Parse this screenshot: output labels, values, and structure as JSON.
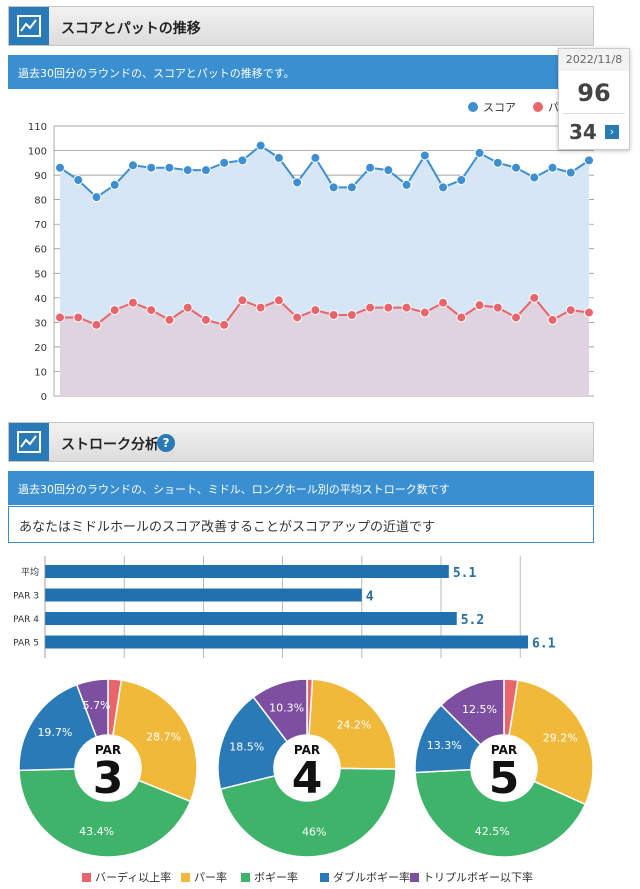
{
  "section1": {
    "title": "スコアとパットの推移",
    "info": "過去30回分のラウンドの、スコアとパットの推移です。",
    "tooltip": {
      "date": "2022/11/8",
      "score": "96",
      "putt": "34",
      "arrow": "›"
    }
  },
  "section2": {
    "title": "ストローク分析",
    "help": "?",
    "info": "過去30回分のラウンドの、ショート、ミドル、ロングホール別の平均ストローク数です",
    "note": "あなたはミドルホールのスコア改善することがスコアアップの近道です"
  },
  "colors": {
    "score": "#3d8fd1",
    "putt": "#e8666b",
    "score_fill": "#d6e6f4",
    "putt_fill": "#e0cfdb",
    "bar": "#2170b0",
    "birdie": "#e8666b",
    "par": "#f0b93a",
    "bogey": "#3fb36a",
    "double": "#2a7ab8",
    "triple": "#7c4fa0"
  },
  "chart_data": [
    {
      "type": "line",
      "ylim": [
        0,
        110
      ],
      "yticks": [
        "0",
        "10",
        "20",
        "30",
        "40",
        "50",
        "60",
        "70",
        "80",
        "90",
        "100",
        "110"
      ],
      "series": [
        {
          "name": "スコア",
          "values": [
            93,
            88,
            81,
            86,
            94,
            93,
            93,
            92,
            92,
            95,
            96,
            102,
            97,
            87,
            97,
            85,
            85,
            93,
            92,
            86,
            98,
            85,
            88,
            99,
            95,
            93,
            89,
            93,
            91,
            96
          ]
        },
        {
          "name": "パット",
          "values": [
            32,
            32,
            29,
            35,
            38,
            35,
            31,
            36,
            31,
            29,
            39,
            36,
            39,
            32,
            35,
            33,
            33,
            36,
            36,
            36,
            34,
            38,
            32,
            37,
            36,
            32,
            40,
            31,
            35,
            34
          ]
        }
      ],
      "legend": [
        "スコア",
        "パット"
      ]
    },
    {
      "type": "bar",
      "orientation": "horizontal",
      "categories": [
        "平均",
        "PAR 3",
        "PAR 4",
        "PAR 5"
      ],
      "values": [
        5.1,
        4,
        5.2,
        6.1
      ],
      "labels": [
        "5.1",
        "4",
        "5.2",
        "6.1"
      ],
      "xlim": [
        0,
        6.1
      ]
    },
    {
      "type": "pie",
      "center_label": "PAR",
      "center_number": "3",
      "slices": [
        {
          "name": "バーディ以上率",
          "value": 2.4,
          "label": ""
        },
        {
          "name": "パー率",
          "value": 28.7,
          "label": "28.7%"
        },
        {
          "name": "ボギー率",
          "value": 43.4,
          "label": "43.4%"
        },
        {
          "name": "ダブルボギー率",
          "value": 19.7,
          "label": "19.7%"
        },
        {
          "name": "トリプルボギー以下率",
          "value": 5.7,
          "label": "5.7%"
        }
      ]
    },
    {
      "type": "pie",
      "center_label": "PAR",
      "center_number": "4",
      "slices": [
        {
          "name": "バーディ以上率",
          "value": 1.0,
          "label": ""
        },
        {
          "name": "パー率",
          "value": 24.2,
          "label": "24.2%"
        },
        {
          "name": "ボギー率",
          "value": 46.0,
          "label": "46%"
        },
        {
          "name": "ダブルボギー率",
          "value": 18.5,
          "label": "18.5%"
        },
        {
          "name": "トリプルボギー以下率",
          "value": 10.3,
          "label": "10.3%"
        }
      ]
    },
    {
      "type": "pie",
      "center_label": "PAR",
      "center_number": "5",
      "slices": [
        {
          "name": "バーディ以上率",
          "value": 2.5,
          "label": ""
        },
        {
          "name": "パー率",
          "value": 29.2,
          "label": "29.2%"
        },
        {
          "name": "ボギー率",
          "value": 42.5,
          "label": "42.5%"
        },
        {
          "name": "ダブルボギー率",
          "value": 13.3,
          "label": "13.3%"
        },
        {
          "name": "トリプルボギー以下率",
          "value": 12.5,
          "label": "12.5%"
        }
      ]
    }
  ],
  "pie_legend": [
    {
      "label": "バーディ以上率",
      "color": "#e8666b"
    },
    {
      "label": "パー率",
      "color": "#f0b93a"
    },
    {
      "label": "ボギー率",
      "color": "#3fb36a"
    },
    {
      "label": "ダブルボギー率",
      "color": "#2a7ab8"
    },
    {
      "label": "トリプルボギー以下率",
      "color": "#7c4fa0"
    }
  ]
}
